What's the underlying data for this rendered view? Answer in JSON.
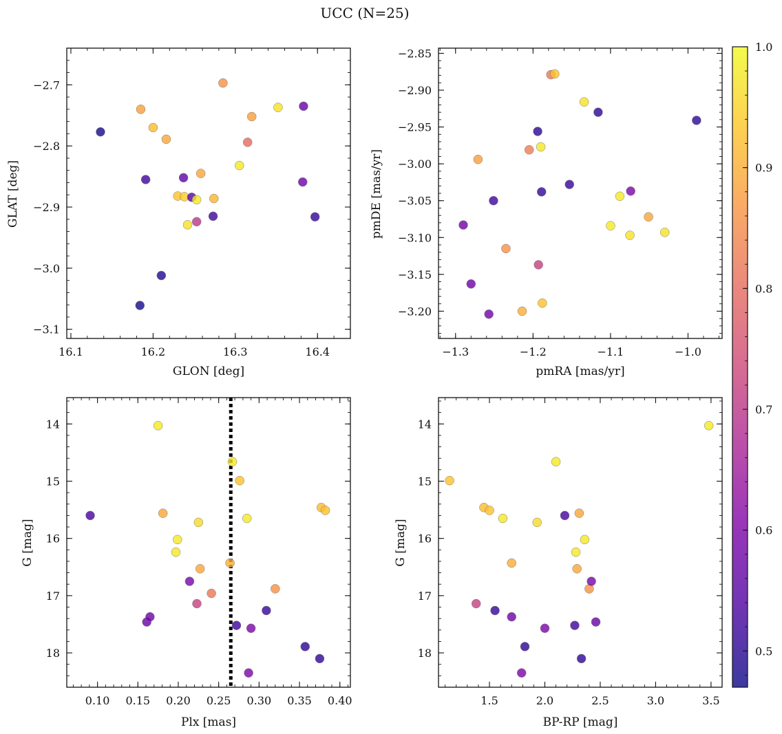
{
  "title": "UCC (N=25)",
  "colorbar": {
    "range": [
      0.47,
      1.0
    ],
    "ticks": [
      "0.5",
      "0.6",
      "0.7",
      "0.8",
      "0.9",
      "1.0"
    ],
    "tick_values": [
      0.5,
      0.6,
      0.7,
      0.8,
      0.9,
      1.0
    ],
    "colormap": "plasma",
    "alpha": 0.8
  },
  "chart_data": [
    {
      "type": "scatter",
      "xlabel": "GLON [deg]",
      "ylabel": "GLAT [deg]",
      "xlim": [
        16.095,
        16.44
      ],
      "ylim": [
        -3.115,
        -2.64
      ],
      "xticks": [
        16.1,
        16.2,
        16.3,
        16.4
      ],
      "xticklabels": [
        "16.1",
        "16.2",
        "16.3",
        "16.4"
      ],
      "yticks": [
        -2.7,
        -2.8,
        -2.9,
        -3.0,
        -3.1
      ],
      "yticklabels": [
        "−2.7",
        "−2.8",
        "−2.9",
        "−3.0",
        "−3.1"
      ],
      "invert_y": false,
      "points": [
        {
          "x": 16.136,
          "y": -2.777,
          "c": 0.48
        },
        {
          "x": 16.184,
          "y": -3.061,
          "c": 0.48
        },
        {
          "x": 16.185,
          "y": -2.74,
          "c": 0.88
        },
        {
          "x": 16.191,
          "y": -2.855,
          "c": 0.52
        },
        {
          "x": 16.2,
          "y": -2.77,
          "c": 0.92
        },
        {
          "x": 16.21,
          "y": -3.012,
          "c": 0.49
        },
        {
          "x": 16.216,
          "y": -2.789,
          "c": 0.89
        },
        {
          "x": 16.23,
          "y": -2.882,
          "c": 0.93
        },
        {
          "x": 16.237,
          "y": -2.852,
          "c": 0.56
        },
        {
          "x": 16.238,
          "y": -2.883,
          "c": 0.94
        },
        {
          "x": 16.242,
          "y": -2.929,
          "c": 0.97
        },
        {
          "x": 16.247,
          "y": -2.884,
          "c": 0.55
        },
        {
          "x": 16.253,
          "y": -2.888,
          "c": 0.98
        },
        {
          "x": 16.253,
          "y": -2.924,
          "c": 0.7
        },
        {
          "x": 16.258,
          "y": -2.845,
          "c": 0.89
        },
        {
          "x": 16.273,
          "y": -2.915,
          "c": 0.52
        },
        {
          "x": 16.274,
          "y": -2.886,
          "c": 0.91
        },
        {
          "x": 16.285,
          "y": -2.697,
          "c": 0.86
        },
        {
          "x": 16.305,
          "y": -2.832,
          "c": 0.98
        },
        {
          "x": 16.315,
          "y": -2.794,
          "c": 0.8
        },
        {
          "x": 16.32,
          "y": -2.752,
          "c": 0.88
        },
        {
          "x": 16.352,
          "y": -2.737,
          "c": 0.97
        },
        {
          "x": 16.383,
          "y": -2.735,
          "c": 0.57
        },
        {
          "x": 16.382,
          "y": -2.859,
          "c": 0.58
        },
        {
          "x": 16.397,
          "y": -2.916,
          "c": 0.51
        }
      ]
    },
    {
      "type": "scatter",
      "xlabel": "pmRA [mas/yr]",
      "ylabel": "pmDE [mas/yr]",
      "xlim": [
        -1.322,
        -0.956
      ],
      "ylim": [
        -3.237,
        -2.843
      ],
      "xticks": [
        -1.3,
        -1.2,
        -1.1,
        -1.0
      ],
      "xticklabels": [
        "−1.3",
        "−1.2",
        "−1.1",
        "−1.0"
      ],
      "yticks": [
        -2.85,
        -2.9,
        -2.95,
        -3.0,
        -3.05,
        -3.1,
        -3.15,
        -3.2
      ],
      "yticklabels": [
        "−2.85",
        "−2.90",
        "−2.95",
        "−3.00",
        "−3.05",
        "−3.10",
        "−3.15",
        "−3.20"
      ],
      "invert_y": false,
      "points": [
        {
          "x": -1.29,
          "y": -3.083,
          "c": 0.58
        },
        {
          "x": -1.28,
          "y": -3.163,
          "c": 0.58
        },
        {
          "x": -1.271,
          "y": -2.994,
          "c": 0.88
        },
        {
          "x": -1.257,
          "y": -3.204,
          "c": 0.58
        },
        {
          "x": -1.251,
          "y": -3.05,
          "c": 0.52
        },
        {
          "x": -1.235,
          "y": -3.115,
          "c": 0.86
        },
        {
          "x": -1.214,
          "y": -3.2,
          "c": 0.9
        },
        {
          "x": -1.205,
          "y": -2.981,
          "c": 0.83
        },
        {
          "x": -1.194,
          "y": -2.956,
          "c": 0.5
        },
        {
          "x": -1.193,
          "y": -3.137,
          "c": 0.72
        },
        {
          "x": -1.19,
          "y": -2.977,
          "c": 0.98
        },
        {
          "x": -1.189,
          "y": -3.038,
          "c": 0.51
        },
        {
          "x": -1.188,
          "y": -3.189,
          "c": 0.93
        },
        {
          "x": -1.177,
          "y": -2.879,
          "c": 0.82
        },
        {
          "x": -1.172,
          "y": -2.878,
          "c": 0.93
        },
        {
          "x": -1.153,
          "y": -3.028,
          "c": 0.51
        },
        {
          "x": -1.134,
          "y": -2.916,
          "c": 0.97
        },
        {
          "x": -1.116,
          "y": -2.93,
          "c": 0.5
        },
        {
          "x": -1.1,
          "y": -3.084,
          "c": 0.98
        },
        {
          "x": -1.088,
          "y": -3.044,
          "c": 0.98
        },
        {
          "x": -1.075,
          "y": -3.097,
          "c": 0.97
        },
        {
          "x": -1.074,
          "y": -3.037,
          "c": 0.6
        },
        {
          "x": -1.051,
          "y": -3.072,
          "c": 0.89
        },
        {
          "x": -1.03,
          "y": -3.093,
          "c": 0.97
        },
        {
          "x": -0.989,
          "y": -2.941,
          "c": 0.5
        }
      ]
    },
    {
      "type": "scatter",
      "xlabel": "Plx [mas]",
      "ylabel": "G [mag]",
      "xlim": [
        0.062,
        0.413
      ],
      "ylim": [
        18.6,
        13.54
      ],
      "xticks": [
        0.1,
        0.15,
        0.2,
        0.25,
        0.3,
        0.35,
        0.4
      ],
      "xticklabels": [
        "0.10",
        "0.15",
        "0.20",
        "0.25",
        "0.30",
        "0.35",
        "0.40"
      ],
      "yticks": [
        14,
        15,
        16,
        17,
        18
      ],
      "yticklabels": [
        "14",
        "15",
        "16",
        "17",
        "18"
      ],
      "invert_y": true,
      "vline": {
        "x": 0.265,
        "style": "dotted",
        "color": "#000000"
      },
      "points": [
        {
          "x": 0.091,
          "y": 15.6,
          "c": 0.53
        },
        {
          "x": 0.161,
          "y": 17.46,
          "c": 0.57
        },
        {
          "x": 0.165,
          "y": 17.37,
          "c": 0.58
        },
        {
          "x": 0.175,
          "y": 14.03,
          "c": 0.98
        },
        {
          "x": 0.181,
          "y": 15.56,
          "c": 0.89
        },
        {
          "x": 0.197,
          "y": 16.24,
          "c": 0.98
        },
        {
          "x": 0.199,
          "y": 16.02,
          "c": 0.98
        },
        {
          "x": 0.214,
          "y": 16.75,
          "c": 0.59
        },
        {
          "x": 0.223,
          "y": 17.14,
          "c": 0.72
        },
        {
          "x": 0.225,
          "y": 15.72,
          "c": 0.96
        },
        {
          "x": 0.227,
          "y": 16.53,
          "c": 0.89
        },
        {
          "x": 0.241,
          "y": 16.96,
          "c": 0.82
        },
        {
          "x": 0.264,
          "y": 16.43,
          "c": 0.9
        },
        {
          "x": 0.267,
          "y": 14.66,
          "c": 0.98
        },
        {
          "x": 0.272,
          "y": 17.52,
          "c": 0.52
        },
        {
          "x": 0.276,
          "y": 14.99,
          "c": 0.93
        },
        {
          "x": 0.285,
          "y": 15.65,
          "c": 0.98
        },
        {
          "x": 0.287,
          "y": 18.35,
          "c": 0.6
        },
        {
          "x": 0.29,
          "y": 17.57,
          "c": 0.6
        },
        {
          "x": 0.309,
          "y": 17.26,
          "c": 0.51
        },
        {
          "x": 0.32,
          "y": 16.88,
          "c": 0.86
        },
        {
          "x": 0.357,
          "y": 17.89,
          "c": 0.5
        },
        {
          "x": 0.375,
          "y": 18.1,
          "c": 0.5
        },
        {
          "x": 0.377,
          "y": 15.46,
          "c": 0.92
        },
        {
          "x": 0.382,
          "y": 15.51,
          "c": 0.93
        }
      ]
    },
    {
      "type": "scatter",
      "xlabel": "BP-RP [mag]",
      "ylabel": "G [mag]",
      "xlim": [
        1.04,
        3.6
      ],
      "ylim": [
        18.6,
        13.54
      ],
      "xticks": [
        1.5,
        2.0,
        2.5,
        3.0,
        3.5
      ],
      "xticklabels": [
        "1.5",
        "2.0",
        "2.5",
        "3.0",
        "3.5"
      ],
      "yticks": [
        14,
        15,
        16,
        17,
        18
      ],
      "yticklabels": [
        "14",
        "15",
        "16",
        "17",
        "18"
      ],
      "invert_y": true,
      "points": [
        {
          "x": 1.14,
          "y": 14.99,
          "c": 0.93
        },
        {
          "x": 1.38,
          "y": 17.14,
          "c": 0.72
        },
        {
          "x": 1.45,
          "y": 15.46,
          "c": 0.92
        },
        {
          "x": 1.5,
          "y": 15.51,
          "c": 0.93
        },
        {
          "x": 1.55,
          "y": 17.26,
          "c": 0.51
        },
        {
          "x": 1.62,
          "y": 15.65,
          "c": 0.98
        },
        {
          "x": 1.7,
          "y": 16.43,
          "c": 0.9
        },
        {
          "x": 1.7,
          "y": 17.37,
          "c": 0.58
        },
        {
          "x": 1.79,
          "y": 18.35,
          "c": 0.6
        },
        {
          "x": 1.82,
          "y": 17.89,
          "c": 0.5
        },
        {
          "x": 1.93,
          "y": 15.72,
          "c": 0.96
        },
        {
          "x": 2.0,
          "y": 17.57,
          "c": 0.6
        },
        {
          "x": 2.1,
          "y": 14.66,
          "c": 0.98
        },
        {
          "x": 2.18,
          "y": 15.6,
          "c": 0.53
        },
        {
          "x": 2.27,
          "y": 17.52,
          "c": 0.52
        },
        {
          "x": 2.28,
          "y": 16.24,
          "c": 0.98
        },
        {
          "x": 2.29,
          "y": 16.53,
          "c": 0.89
        },
        {
          "x": 2.31,
          "y": 15.56,
          "c": 0.89
        },
        {
          "x": 2.33,
          "y": 18.1,
          "c": 0.5
        },
        {
          "x": 2.36,
          "y": 16.02,
          "c": 0.98
        },
        {
          "x": 2.4,
          "y": 16.88,
          "c": 0.86
        },
        {
          "x": 2.42,
          "y": 16.75,
          "c": 0.59
        },
        {
          "x": 2.46,
          "y": 17.46,
          "c": 0.57
        },
        {
          "x": 3.48,
          "y": 14.03,
          "c": 0.98
        }
      ]
    }
  ]
}
